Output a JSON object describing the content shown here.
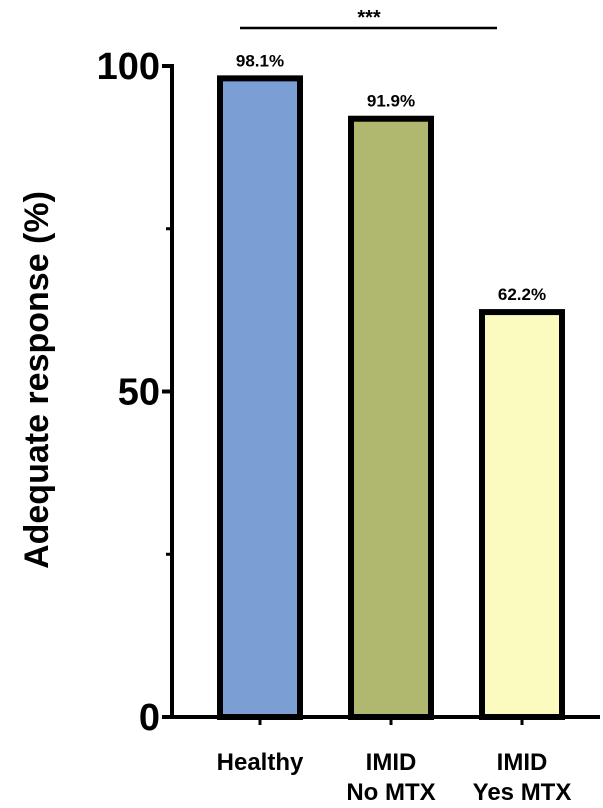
{
  "chart_data": {
    "type": "bar",
    "ylabel": "Adequate response (%)",
    "ylim": [
      0,
      100
    ],
    "yticks": [
      0,
      50,
      100
    ],
    "yminor": [
      25,
      75
    ],
    "categories": [
      [
        "Healthy"
      ],
      [
        "IMID",
        "No MTX"
      ],
      [
        "IMID",
        "Yes MTX"
      ]
    ],
    "values": [
      98.1,
      91.9,
      62.2
    ],
    "value_labels": [
      "98.1%",
      "91.9%",
      "62.2%"
    ],
    "colors": [
      "#7b9fd4",
      "#b0b86f",
      "#fbfbbf"
    ],
    "significance": {
      "from": 0,
      "to": 2,
      "label": "***"
    },
    "grid": false,
    "legend": "none"
  }
}
